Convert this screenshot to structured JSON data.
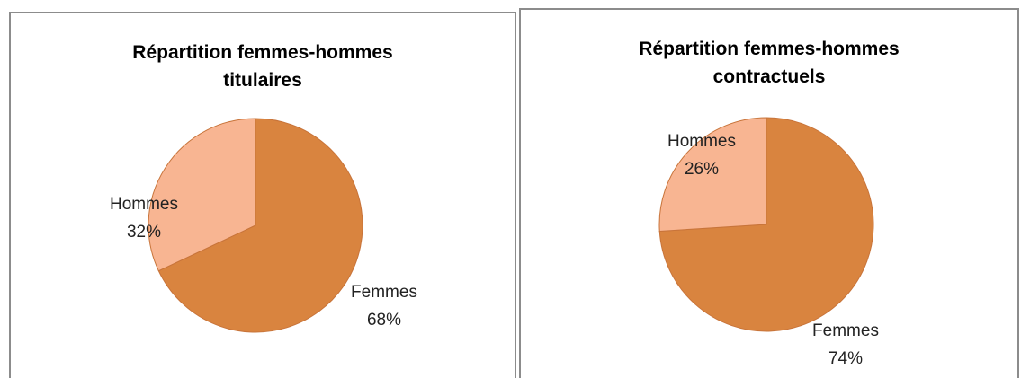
{
  "chart_data": [
    {
      "type": "pie",
      "title": "Répartition femmes-hommes titulaires",
      "categories": [
        "Femmes",
        "Hommes"
      ],
      "values": [
        68,
        32
      ],
      "value_labels": [
        "68%",
        "32%"
      ],
      "colors": [
        "#d9843f",
        "#f8b592"
      ]
    },
    {
      "type": "pie",
      "title": "Répartition femmes-hommes contractuels",
      "categories": [
        "Femmes",
        "Hommes"
      ],
      "values": [
        74,
        26
      ],
      "value_labels": [
        "74%",
        "26%"
      ],
      "colors": [
        "#d9843f",
        "#f8b592"
      ]
    }
  ]
}
